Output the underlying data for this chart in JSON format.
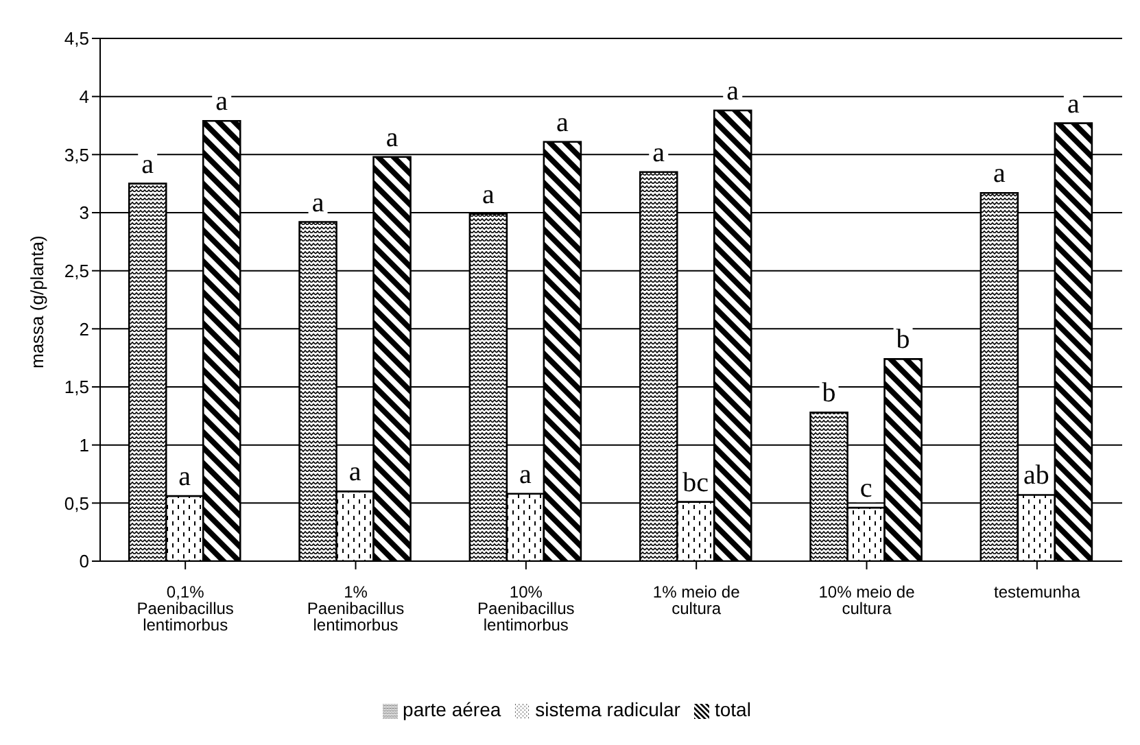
{
  "chart_data": {
    "type": "bar",
    "ylabel": "massa (g/planta)",
    "categories": [
      "0,1% Paenibacillus lentimorbus",
      "1% Paenibacillus lentimorbus",
      "10% Paenibacillus lentimorbus",
      "1% meio de cultura",
      "10% meio de cultura",
      "testemunha"
    ],
    "series": [
      {
        "name": "parte aérea",
        "color": "#000000",
        "values": [
          3.25,
          2.92,
          2.99,
          3.35,
          1.28,
          3.17
        ],
        "value_labels": [
          "a",
          "a",
          "a",
          "a",
          "b",
          "a"
        ]
      },
      {
        "name": "sistema radicular",
        "color": "#000000",
        "values": [
          0.56,
          0.6,
          0.58,
          0.51,
          0.46,
          0.57
        ],
        "value_labels": [
          "a",
          "a",
          "a",
          "bc",
          "c",
          "ab"
        ]
      },
      {
        "name": "total",
        "color": "#000000",
        "values": [
          3.79,
          3.48,
          3.61,
          3.88,
          1.74,
          3.77
        ],
        "value_labels": [
          "a",
          "a",
          "a",
          "a",
          "b",
          "a"
        ]
      }
    ],
    "ylim": [
      0,
      4.5
    ],
    "yticks": [
      0,
      {
        "value": 0.5,
        "label": "0,5"
      },
      1,
      {
        "value": 1.5,
        "label": "1,5"
      },
      2,
      {
        "value": 2.5,
        "label": "2,5"
      },
      3,
      {
        "value": 3.5,
        "label": "3,5"
      },
      4,
      {
        "value": 4.5,
        "label": "4,5"
      }
    ],
    "grid": "y",
    "legend": "bottom"
  }
}
